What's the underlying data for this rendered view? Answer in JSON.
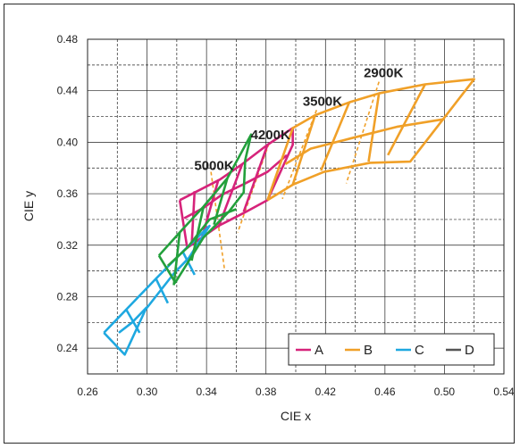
{
  "chart_data": {
    "type": "line",
    "xlabel": "CIE x",
    "ylabel": "CIE y",
    "xlim": [
      0.26,
      0.54
    ],
    "ylim": [
      0.22,
      0.48
    ],
    "xticks": [
      "0.26",
      "0.30",
      "0.34",
      "0.38",
      "0.42",
      "0.46",
      "0.50",
      "0.54"
    ],
    "yticks": [
      "0.24",
      "0.28",
      "0.32",
      "0.36",
      "0.40",
      "0.44",
      "0.48"
    ],
    "grid": true,
    "legend_position": "bottom-right",
    "cct_labels": [
      {
        "text": "5000K",
        "x": 0.345,
        "y": 0.377
      },
      {
        "text": "4200K",
        "x": 0.383,
        "y": 0.401
      },
      {
        "text": "3500K",
        "x": 0.418,
        "y": 0.427
      },
      {
        "text": "2900K",
        "x": 0.459,
        "y": 0.449
      }
    ],
    "isotherms": [
      {
        "points": [
          [
            0.343,
            0.377
          ],
          [
            0.352,
            0.302
          ]
        ]
      },
      {
        "points": [
          [
            0.382,
            0.399
          ],
          [
            0.361,
            0.33
          ]
        ]
      },
      {
        "points": [
          [
            0.414,
            0.425
          ],
          [
            0.391,
            0.356
          ]
        ]
      },
      {
        "points": [
          [
            0.456,
            0.447
          ],
          [
            0.434,
            0.368
          ]
        ]
      }
    ],
    "series": [
      {
        "name": "A",
        "color": "#d6237a",
        "polylines": [
          [
            [
              0.322,
              0.355
            ],
            [
              0.349,
              0.371
            ],
            [
              0.364,
              0.383
            ],
            [
              0.381,
              0.398
            ],
            [
              0.398,
              0.411
            ],
            [
              0.398,
              0.398
            ],
            [
              0.381,
              0.355
            ],
            [
              0.365,
              0.345
            ],
            [
              0.348,
              0.335
            ],
            [
              0.327,
              0.318
            ],
            [
              0.322,
              0.355
            ]
          ],
          [
            [
              0.332,
              0.362
            ],
            [
              0.33,
              0.32
            ]
          ],
          [
            [
              0.348,
              0.371
            ],
            [
              0.337,
              0.326
            ]
          ],
          [
            [
              0.364,
              0.383
            ],
            [
              0.348,
              0.334
            ]
          ],
          [
            [
              0.381,
              0.398
            ],
            [
              0.365,
              0.346
            ]
          ],
          [
            [
              0.325,
              0.341
            ],
            [
              0.338,
              0.349
            ],
            [
              0.35,
              0.359
            ],
            [
              0.366,
              0.368
            ],
            [
              0.381,
              0.377
            ],
            [
              0.394,
              0.39
            ]
          ]
        ]
      },
      {
        "name": "B",
        "color": "#f0a028",
        "polylines": [
          [
            [
              0.381,
              0.355
            ],
            [
              0.398,
              0.411
            ],
            [
              0.413,
              0.421
            ],
            [
              0.436,
              0.431
            ],
            [
              0.456,
              0.438
            ],
            [
              0.487,
              0.445
            ],
            [
              0.52,
              0.449
            ],
            [
              0.477,
              0.385
            ],
            [
              0.45,
              0.384
            ],
            [
              0.419,
              0.377
            ],
            [
              0.398,
              0.367
            ],
            [
              0.381,
              0.355
            ]
          ],
          [
            [
              0.413,
              0.421
            ],
            [
              0.398,
              0.367
            ]
          ],
          [
            [
              0.436,
              0.431
            ],
            [
              0.417,
              0.378
            ]
          ],
          [
            [
              0.456,
              0.438
            ],
            [
              0.449,
              0.385
            ]
          ],
          [
            [
              0.487,
              0.445
            ],
            [
              0.462,
              0.39
            ]
          ],
          [
            [
              0.393,
              0.383
            ],
            [
              0.41,
              0.395
            ],
            [
              0.437,
              0.403
            ],
            [
              0.468,
              0.412
            ],
            [
              0.5,
              0.418
            ]
          ]
        ]
      },
      {
        "name": "C",
        "color": "#1ea8e0",
        "polylines": [
          [
            [
              0.271,
              0.252
            ],
            [
              0.286,
              0.27
            ],
            [
              0.306,
              0.294
            ],
            [
              0.324,
              0.315
            ],
            [
              0.342,
              0.335
            ],
            [
              0.328,
              0.31
            ],
            [
              0.318,
              0.298
            ],
            [
              0.299,
              0.27
            ],
            [
              0.285,
              0.235
            ],
            [
              0.271,
              0.252
            ]
          ],
          [
            [
              0.286,
              0.27
            ],
            [
              0.295,
              0.252
            ]
          ],
          [
            [
              0.306,
              0.294
            ],
            [
              0.314,
              0.275
            ]
          ],
          [
            [
              0.324,
              0.315
            ],
            [
              0.332,
              0.297
            ]
          ],
          [
            [
              0.281,
              0.252
            ],
            [
              0.29,
              0.26
            ],
            [
              0.3,
              0.272
            ]
          ]
        ]
      },
      {
        "name": "D",
        "color": "#555555",
        "polylines": []
      },
      {
        "name": "D-overlay",
        "color": "#23a03c",
        "polylines": [
          [
            [
              0.308,
              0.312
            ],
            [
              0.322,
              0.33
            ],
            [
              0.338,
              0.35
            ],
            [
              0.354,
              0.372
            ],
            [
              0.37,
              0.406
            ],
            [
              0.366,
              0.386
            ],
            [
              0.365,
              0.361
            ],
            [
              0.355,
              0.346
            ],
            [
              0.338,
              0.326
            ],
            [
              0.319,
              0.291
            ],
            [
              0.308,
              0.312
            ]
          ],
          [
            [
              0.322,
              0.33
            ],
            [
              0.318,
              0.289
            ]
          ],
          [
            [
              0.338,
              0.35
            ],
            [
              0.33,
              0.308
            ]
          ],
          [
            [
              0.354,
              0.372
            ],
            [
              0.345,
              0.336
            ]
          ],
          [
            [
              0.314,
              0.304
            ],
            [
              0.327,
              0.318
            ],
            [
              0.342,
              0.34
            ],
            [
              0.36,
              0.348
            ]
          ]
        ]
      }
    ],
    "legend": [
      {
        "label": "A",
        "color": "#d6237a"
      },
      {
        "label": "B",
        "color": "#f0a028"
      },
      {
        "label": "C",
        "color": "#1ea8e0"
      },
      {
        "label": "D",
        "color": "#555555"
      }
    ]
  }
}
